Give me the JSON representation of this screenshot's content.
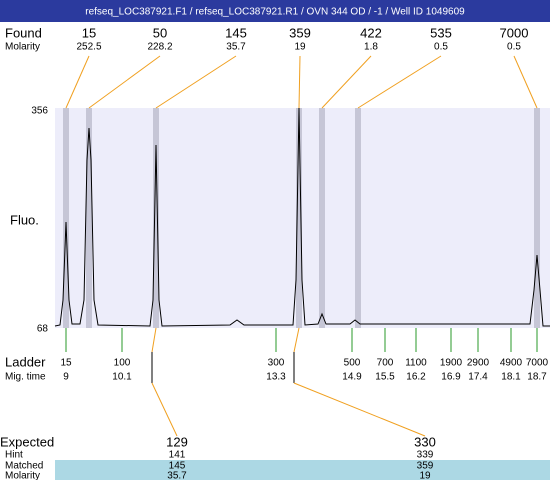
{
  "header": {
    "title": "refseq_LOC387921.F1 / refseq_LOC387921.R1 / OVN 344 OD  / -1 / Well ID 1049609"
  },
  "found": {
    "label": "Found",
    "molarity_label": "Molarity",
    "peaks": [
      {
        "size": 15,
        "molarity": 252.5
      },
      {
        "size": 50,
        "molarity": 228.2
      },
      {
        "size": 145,
        "molarity": 35.7
      },
      {
        "size": 359,
        "molarity": 19
      },
      {
        "size": 422,
        "molarity": 1.8
      },
      {
        "size": 535,
        "molarity": 0.5
      },
      {
        "size": 7000,
        "molarity": 0.5
      }
    ]
  },
  "axis": {
    "y_label": "Fluo.",
    "y_max": 356,
    "y_min": 68
  },
  "ladder": {
    "label": "Ladder",
    "mig_label": "Mig. time",
    "peaks": [
      {
        "size": 15,
        "mig_time": 9
      },
      {
        "size": 100,
        "mig_time": 10.1
      },
      {
        "size": 300,
        "mig_time": 13.3
      },
      {
        "size": 500,
        "mig_time": 14.9
      },
      {
        "size": 700,
        "mig_time": 15.5
      },
      {
        "size": 1100,
        "mig_time": 16.2
      },
      {
        "size": 1900,
        "mig_time": 16.9
      },
      {
        "size": 2900,
        "mig_time": 17.4
      },
      {
        "size": 4900,
        "mig_time": 18.1
      },
      {
        "size": 7000,
        "mig_time": 18.7
      }
    ]
  },
  "expected": {
    "expected_label": "Expected",
    "hint_label": "Hint",
    "matched_label": "Matched",
    "molarity_label": "Molarity",
    "columns": [
      {
        "expected": 129,
        "hint": 141,
        "matched": 145,
        "molarity": 35.7
      },
      {
        "expected": 330,
        "hint": 339,
        "matched": 359,
        "molarity": 19
      }
    ]
  }
}
